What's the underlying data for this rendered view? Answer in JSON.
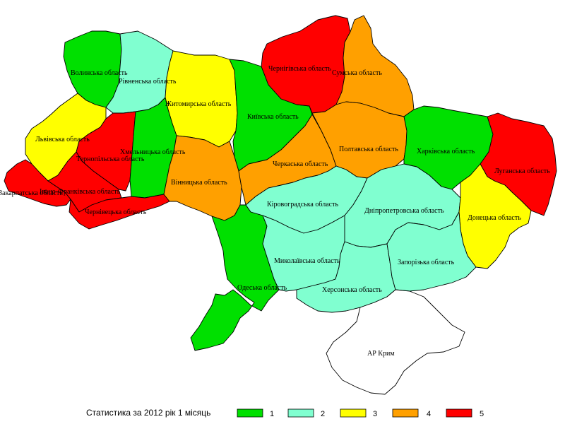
{
  "colors": {
    "1": "#00e000",
    "2": "#80ffd0",
    "3": "#ffff00",
    "4": "#ffa000",
    "5": "#ff0000",
    "crimea": "#ffffff"
  },
  "regions": [
    {
      "id": "volyn",
      "label": "Волинська область",
      "cls": 1
    },
    {
      "id": "rivne",
      "label": "Рівненська область",
      "cls": 2
    },
    {
      "id": "zhytomyr",
      "label": "Житомирська область",
      "cls": 3
    },
    {
      "id": "kyiv",
      "label": "Київська область",
      "cls": 1
    },
    {
      "id": "chernihiv",
      "label": "Чернігівська область",
      "cls": 5
    },
    {
      "id": "sumy",
      "label": "Сумська область",
      "cls": 4
    },
    {
      "id": "lviv",
      "label": "Львівська область",
      "cls": 3
    },
    {
      "id": "ternopil",
      "label": "Тернопільська область",
      "cls": 5
    },
    {
      "id": "khmelnytskyi",
      "label": "Хмельницька область",
      "cls": 1
    },
    {
      "id": "zakarpattia",
      "label": "Закарпатська область",
      "cls": 5
    },
    {
      "id": "ivano",
      "label": "Івано-Франківська область",
      "cls": 5
    },
    {
      "id": "chernivtsi",
      "label": "Чернівецька область",
      "cls": 5
    },
    {
      "id": "vinnytsia",
      "label": "Вінницька область",
      "cls": 4
    },
    {
      "id": "cherkasy",
      "label": "Черкаська область",
      "cls": 4
    },
    {
      "id": "poltava",
      "label": "Полтавська область",
      "cls": 4
    },
    {
      "id": "kharkiv",
      "label": "Харківська область",
      "cls": 1
    },
    {
      "id": "luhansk",
      "label": "Луганська область",
      "cls": 5
    },
    {
      "id": "kirovohrad",
      "label": "Кіровоградська область",
      "cls": 2
    },
    {
      "id": "dnipro",
      "label": "Дніпропетровська область",
      "cls": 2
    },
    {
      "id": "donetsk",
      "label": "Донецька область",
      "cls": 3
    },
    {
      "id": "odesa",
      "label": "Одеська область",
      "cls": 1
    },
    {
      "id": "mykolaiv",
      "label": "Миколаївська область",
      "cls": 2
    },
    {
      "id": "kherson",
      "label": "Херсонська область",
      "cls": 2
    },
    {
      "id": "zaporizhzhia",
      "label": "Запорізька область",
      "cls": 2
    },
    {
      "id": "crimea",
      "label": "АР Крим",
      "cls": null
    }
  ],
  "legend": {
    "caption": "Статистика за 2012 рік 1 місяць",
    "items": [
      {
        "cls": 1,
        "label": "1"
      },
      {
        "cls": 2,
        "label": "2"
      },
      {
        "cls": 3,
        "label": "3"
      },
      {
        "cls": 4,
        "label": "4"
      },
      {
        "cls": 5,
        "label": "5"
      }
    ]
  }
}
